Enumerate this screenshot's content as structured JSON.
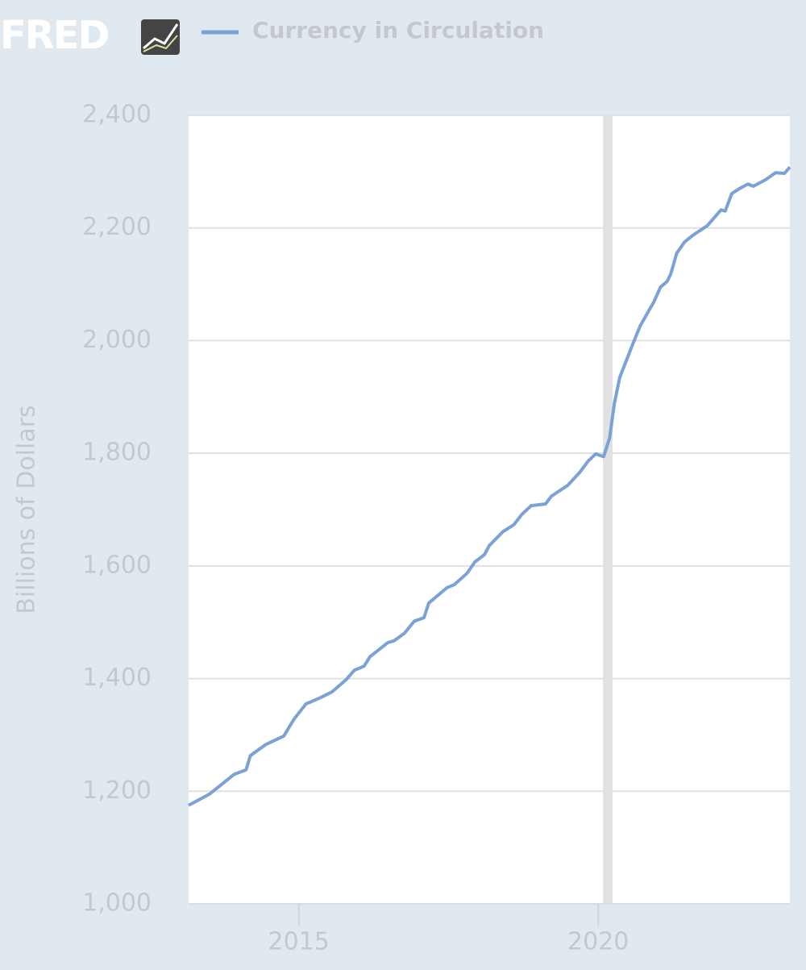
{
  "logo": "FRED",
  "chart_data": {
    "type": "line",
    "y_label": "Billions of Dollars",
    "series": [
      {
        "name": "Currency in Circulation",
        "color": "#7aa2d6",
        "x": [
          2013.16,
          2013.51,
          2013.92,
          2014.12,
          2014.19,
          2014.45,
          2014.75,
          2014.92,
          2015.12,
          2015.36,
          2015.55,
          2015.79,
          2015.93,
          2016.09,
          2016.19,
          2016.49,
          2016.59,
          2016.76,
          2016.93,
          2017.09,
          2017.17,
          2017.47,
          2017.6,
          2017.81,
          2017.94,
          2018.1,
          2018.18,
          2018.41,
          2018.59,
          2018.72,
          2018.88,
          2019.12,
          2019.22,
          2019.49,
          2019.69,
          2019.83,
          2019.96,
          2020.09,
          2020.19,
          2020.27,
          2020.36,
          2020.57,
          2020.7,
          2020.93,
          2021.04,
          2021.15,
          2021.21,
          2021.31,
          2021.44,
          2021.58,
          2021.82,
          2022.05,
          2022.12,
          2022.23,
          2022.36,
          2022.5,
          2022.59,
          2022.8,
          2022.96,
          2023.11,
          2023.2
        ],
        "values": [
          1175,
          1195,
          1230,
          1238,
          1263,
          1283,
          1298,
          1328,
          1355,
          1366,
          1376,
          1398,
          1415,
          1422,
          1439,
          1464,
          1467,
          1480,
          1502,
          1508,
          1534,
          1561,
          1567,
          1587,
          1607,
          1620,
          1636,
          1661,
          1673,
          1691,
          1707,
          1710,
          1724,
          1743,
          1766,
          1786,
          1799,
          1794,
          1827,
          1889,
          1935,
          1992,
          2026,
          2069,
          2095,
          2105,
          2118,
          2155,
          2175,
          2187,
          2204,
          2232,
          2230,
          2261,
          2270,
          2278,
          2274,
          2286,
          2298,
          2297,
          2308
        ]
      }
    ],
    "recession": [
      2020.08,
      2020.24
    ],
    "recession_color": "#e1e1e1",
    "xlim": [
      2013.16,
      2023.2
    ],
    "xticks": [
      2015,
      2020
    ],
    "ylim": [
      1000,
      2400
    ],
    "yticks": [
      {
        "value": 1000,
        "label": "1,000"
      },
      {
        "value": 1200,
        "label": "1,200"
      },
      {
        "value": 1400,
        "label": "1,400"
      },
      {
        "value": 1600,
        "label": "1,600"
      },
      {
        "value": 1800,
        "label": "1,800"
      },
      {
        "value": 2000,
        "label": "2,000"
      },
      {
        "value": 2200,
        "label": "2,200"
      },
      {
        "value": 2400,
        "label": "2,400"
      }
    ],
    "grid": true
  }
}
